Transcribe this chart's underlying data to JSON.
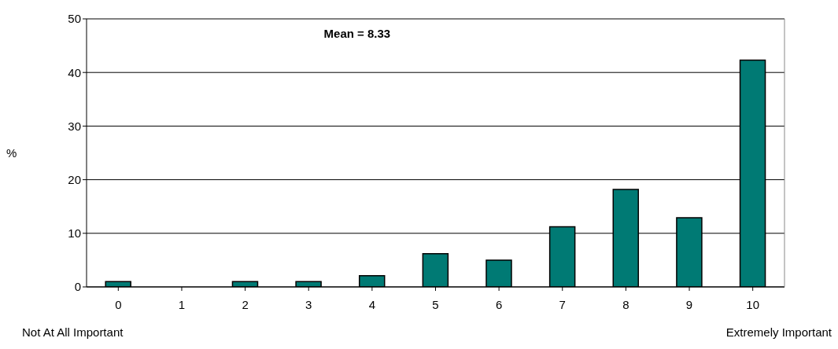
{
  "chart_data": {
    "type": "bar",
    "ylabel": "%",
    "categories": [
      "0",
      "1",
      "2",
      "3",
      "4",
      "5",
      "6",
      "7",
      "8",
      "9",
      "10"
    ],
    "values": [
      1,
      0,
      1,
      1,
      2.1,
      6.2,
      5,
      11.2,
      18.2,
      12.9,
      42.3
    ],
    "color": "#007a74",
    "ylim": [
      0,
      50
    ],
    "yticks": [
      0,
      10,
      20,
      30,
      40,
      50
    ],
    "grid": "y",
    "annotations": [
      "Mean = 8.33",
      "Not At All Important",
      "Extremely Important"
    ]
  }
}
